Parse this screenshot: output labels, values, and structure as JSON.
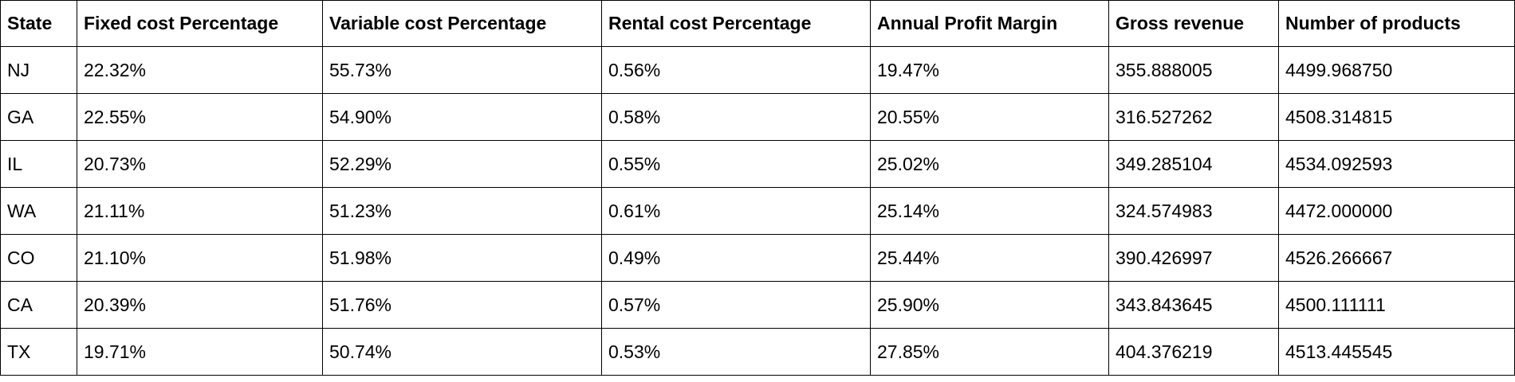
{
  "table": {
    "headers": [
      "State",
      "Fixed cost Percentage",
      "Variable cost Percentage",
      "Rental cost Percentage",
      "Annual Profit Margin",
      "Gross revenue",
      "Number of products"
    ],
    "rows": [
      [
        "NJ",
        "22.32%",
        "55.73%",
        "0.56%",
        "19.47%",
        "355.888005",
        "4499.968750"
      ],
      [
        "GA",
        "22.55%",
        "54.90%",
        "0.58%",
        "20.55%",
        "316.527262",
        "4508.314815"
      ],
      [
        "IL",
        "20.73%",
        "52.29%",
        "0.55%",
        "25.02%",
        "349.285104",
        "4534.092593"
      ],
      [
        "WA",
        "21.11%",
        "51.23%",
        "0.61%",
        "25.14%",
        "324.574983",
        "4472.000000"
      ],
      [
        "CO",
        "21.10%",
        "51.98%",
        "0.49%",
        "25.44%",
        "390.426997",
        "4526.266667"
      ],
      [
        "CA",
        "20.39%",
        "51.76%",
        "0.57%",
        "25.90%",
        "343.843645",
        "4500.111111"
      ],
      [
        "TX",
        "19.71%",
        "50.74%",
        "0.53%",
        "27.85%",
        "404.376219",
        "4513.445545"
      ]
    ]
  }
}
